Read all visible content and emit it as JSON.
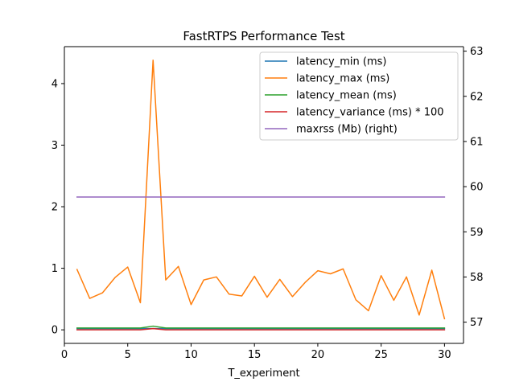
{
  "chart_data": {
    "type": "line",
    "title": "FastRTPS Performance Test",
    "xlabel": "T_experiment",
    "ylabel": "",
    "ylabel_right": "",
    "xlim": [
      0,
      31.5
    ],
    "ylim": [
      -0.22,
      4.6
    ],
    "ylim_right": [
      56.53,
      63.1
    ],
    "xticks": [
      0,
      5,
      10,
      15,
      20,
      25,
      30
    ],
    "yticks": [
      0,
      1,
      2,
      3,
      4
    ],
    "yticks_right": [
      57,
      58,
      59,
      60,
      61,
      62,
      63
    ],
    "grid": false,
    "legend_position": "top-right",
    "x": [
      1,
      2,
      3,
      4,
      5,
      6,
      7,
      8,
      9,
      10,
      11,
      12,
      13,
      14,
      15,
      16,
      17,
      18,
      19,
      20,
      21,
      22,
      23,
      24,
      25,
      26,
      27,
      28,
      29,
      30
    ],
    "series": [
      {
        "name": "latency_min (ms)",
        "color": "#1f77b4",
        "axis": "left",
        "values": [
          0.02,
          0.02,
          0.02,
          0.02,
          0.02,
          0.02,
          0.02,
          0.02,
          0.02,
          0.02,
          0.02,
          0.02,
          0.02,
          0.02,
          0.02,
          0.02,
          0.02,
          0.02,
          0.02,
          0.02,
          0.02,
          0.02,
          0.02,
          0.02,
          0.02,
          0.02,
          0.02,
          0.02,
          0.02,
          0.02
        ]
      },
      {
        "name": "latency_max (ms)",
        "color": "#ff7f0e",
        "axis": "left",
        "values": [
          0.98,
          0.51,
          0.6,
          0.85,
          1.02,
          0.44,
          4.38,
          0.81,
          1.03,
          0.41,
          0.81,
          0.86,
          0.58,
          0.55,
          0.87,
          0.53,
          0.82,
          0.54,
          0.77,
          0.96,
          0.91,
          0.99,
          0.49,
          0.31,
          0.88,
          0.48,
          0.86,
          0.24,
          0.97,
          0.18
        ]
      },
      {
        "name": "latency_mean (ms)",
        "color": "#2ca02c",
        "axis": "left",
        "values": [
          0.03,
          0.03,
          0.03,
          0.03,
          0.03,
          0.03,
          0.06,
          0.03,
          0.03,
          0.03,
          0.03,
          0.03,
          0.03,
          0.03,
          0.03,
          0.03,
          0.03,
          0.03,
          0.03,
          0.03,
          0.03,
          0.03,
          0.03,
          0.03,
          0.03,
          0.03,
          0.03,
          0.03,
          0.03,
          0.03
        ]
      },
      {
        "name": "latency_variance (ms) * 100",
        "color": "#d62728",
        "axis": "left",
        "values": [
          0.0,
          0.0,
          0.0,
          0.0,
          0.0,
          0.0,
          0.02,
          0.0,
          0.0,
          0.0,
          0.0,
          0.0,
          0.0,
          0.0,
          0.0,
          0.0,
          0.0,
          0.0,
          0.0,
          0.0,
          0.0,
          0.0,
          0.0,
          0.0,
          0.0,
          0.0,
          0.0,
          0.0,
          0.0,
          0.0
        ]
      },
      {
        "name": "maxrss (Mb) (right)",
        "color": "#9467bd",
        "axis": "right",
        "values": [
          59.77,
          59.77,
          59.77,
          59.77,
          59.77,
          59.77,
          59.77,
          59.77,
          59.77,
          59.77,
          59.77,
          59.77,
          59.77,
          59.77,
          59.77,
          59.77,
          59.77,
          59.77,
          59.77,
          59.77,
          59.77,
          59.77,
          59.77,
          59.77,
          59.77,
          59.77,
          59.77,
          59.77,
          59.77,
          59.77
        ]
      }
    ]
  }
}
